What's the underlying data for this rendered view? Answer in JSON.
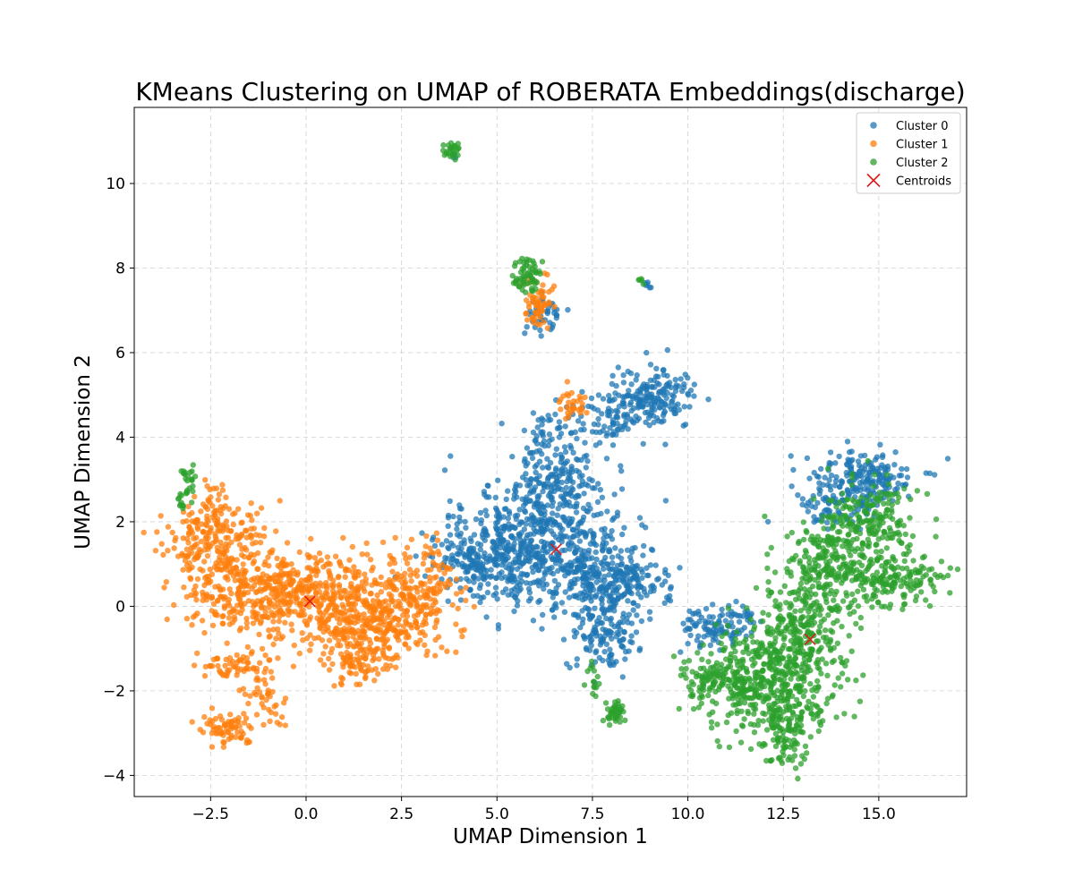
{
  "chart_data": {
    "type": "scatter",
    "title": "KMeans Clustering on UMAP of ROBERATA Embeddings(discharge)",
    "xlabel": "UMAP Dimension 1",
    "ylabel": "UMAP Dimension 2",
    "xlim": [
      -4.5,
      17.3
    ],
    "ylim": [
      -4.5,
      11.8
    ],
    "xticks": [
      -2.5,
      0.0,
      2.5,
      5.0,
      7.5,
      10.0,
      12.5,
      15.0
    ],
    "xtick_labels": [
      "−2.5",
      "0.0",
      "2.5",
      "5.0",
      "7.5",
      "10.0",
      "12.5",
      "15.0"
    ],
    "yticks": [
      -4,
      -2,
      0,
      2,
      4,
      6,
      8,
      10
    ],
    "ytick_labels": [
      "−4",
      "−2",
      "0",
      "2",
      "4",
      "6",
      "8",
      "10"
    ],
    "grid": true,
    "legend_position": "upper right",
    "series": [
      {
        "name": "Cluster 0",
        "color": "#1f77b4",
        "blobs": [
          {
            "cx": 6.2,
            "cy": 1.8,
            "sx": 1.0,
            "sy": 0.9,
            "n": 420
          },
          {
            "cx": 5.2,
            "cy": 1.2,
            "sx": 0.8,
            "sy": 0.5,
            "n": 200
          },
          {
            "cx": 6.6,
            "cy": 3.3,
            "sx": 0.45,
            "sy": 0.7,
            "n": 160
          },
          {
            "cx": 7.5,
            "cy": 0.6,
            "sx": 0.7,
            "sy": 0.7,
            "n": 220
          },
          {
            "cx": 8.5,
            "cy": 0.6,
            "sx": 0.5,
            "sy": 0.35,
            "n": 120
          },
          {
            "cx": 7.9,
            "cy": -0.6,
            "sx": 0.4,
            "sy": 0.5,
            "n": 110
          },
          {
            "cx": 9.1,
            "cy": 4.9,
            "sx": 0.55,
            "sy": 0.35,
            "n": 170
          },
          {
            "cx": 8.0,
            "cy": 4.5,
            "sx": 0.5,
            "sy": 0.3,
            "n": 70
          },
          {
            "cx": 4.2,
            "cy": 1.0,
            "sx": 0.45,
            "sy": 0.35,
            "n": 90
          },
          {
            "cx": 14.6,
            "cy": 3.0,
            "sx": 0.7,
            "sy": 0.35,
            "n": 200
          },
          {
            "cx": 13.7,
            "cy": 2.3,
            "sx": 0.5,
            "sy": 0.3,
            "n": 60
          },
          {
            "cx": 10.5,
            "cy": -0.6,
            "sx": 0.35,
            "sy": 0.3,
            "n": 60
          },
          {
            "cx": 11.2,
            "cy": -0.4,
            "sx": 0.4,
            "sy": 0.3,
            "n": 50
          },
          {
            "cx": 6.2,
            "cy": 6.9,
            "sx": 0.25,
            "sy": 0.25,
            "n": 40
          },
          {
            "cx": 8.9,
            "cy": 7.6,
            "sx": 0.05,
            "sy": 0.05,
            "n": 6
          },
          {
            "cx": 3.9,
            "cy": 10.6,
            "sx": 0.05,
            "sy": 0.05,
            "n": 3
          }
        ]
      },
      {
        "name": "Cluster 1",
        "color": "#ff7f0e",
        "blobs": [
          {
            "cx": 0.3,
            "cy": 0.2,
            "sx": 1.3,
            "sy": 0.5,
            "n": 420
          },
          {
            "cx": 1.8,
            "cy": -0.4,
            "sx": 0.9,
            "sy": 0.45,
            "n": 260
          },
          {
            "cx": 1.3,
            "cy": -1.3,
            "sx": 0.4,
            "sy": 0.3,
            "n": 80
          },
          {
            "cx": -2.3,
            "cy": 1.5,
            "sx": 0.7,
            "sy": 0.5,
            "n": 220
          },
          {
            "cx": -1.5,
            "cy": 0.3,
            "sx": 0.8,
            "sy": 0.4,
            "n": 180
          },
          {
            "cx": -2.6,
            "cy": 2.3,
            "sx": 0.25,
            "sy": 0.3,
            "n": 40
          },
          {
            "cx": 3.0,
            "cy": 0.5,
            "sx": 0.5,
            "sy": 0.5,
            "n": 140
          },
          {
            "cx": -1.8,
            "cy": -1.4,
            "sx": 0.6,
            "sy": 0.15,
            "n": 60
          },
          {
            "cx": -2.0,
            "cy": -2.9,
            "sx": 0.35,
            "sy": 0.2,
            "n": 70
          },
          {
            "cx": -1.0,
            "cy": -2.2,
            "sx": 0.35,
            "sy": 0.25,
            "n": 40
          },
          {
            "cx": 6.1,
            "cy": 7.2,
            "sx": 0.18,
            "sy": 0.3,
            "n": 60
          },
          {
            "cx": 6.9,
            "cy": 4.8,
            "sx": 0.2,
            "sy": 0.2,
            "n": 30
          }
        ]
      },
      {
        "name": "Cluster 2",
        "color": "#2ca02c",
        "blobs": [
          {
            "cx": 12.2,
            "cy": -1.7,
            "sx": 0.9,
            "sy": 0.6,
            "n": 420
          },
          {
            "cx": 13.0,
            "cy": -0.5,
            "sx": 0.6,
            "sy": 0.6,
            "n": 220
          },
          {
            "cx": 12.5,
            "cy": -3.0,
            "sx": 0.3,
            "sy": 0.45,
            "n": 110
          },
          {
            "cx": 10.7,
            "cy": -1.7,
            "sx": 0.45,
            "sy": 0.25,
            "n": 110
          },
          {
            "cx": 13.8,
            "cy": 0.9,
            "sx": 0.6,
            "sy": 0.5,
            "n": 220
          },
          {
            "cx": 14.8,
            "cy": 2.0,
            "sx": 0.6,
            "sy": 0.5,
            "n": 200
          },
          {
            "cx": 15.5,
            "cy": 0.6,
            "sx": 0.6,
            "sy": 0.3,
            "n": 150
          },
          {
            "cx": 8.1,
            "cy": -2.5,
            "sx": 0.12,
            "sy": 0.12,
            "n": 40
          },
          {
            "cx": 5.8,
            "cy": 7.8,
            "sx": 0.2,
            "sy": 0.25,
            "n": 60
          },
          {
            "cx": 3.8,
            "cy": 10.8,
            "sx": 0.12,
            "sy": 0.1,
            "n": 25
          },
          {
            "cx": -3.1,
            "cy": 2.9,
            "sx": 0.1,
            "sy": 0.25,
            "n": 25
          },
          {
            "cx": -3.3,
            "cy": 2.4,
            "sx": 0.05,
            "sy": 0.1,
            "n": 8
          },
          {
            "cx": 7.5,
            "cy": -1.8,
            "sx": 0.15,
            "sy": 0.25,
            "n": 15
          },
          {
            "cx": 8.8,
            "cy": 7.7,
            "sx": 0.05,
            "sy": 0.05,
            "n": 5
          }
        ]
      }
    ],
    "centroids": {
      "name": "Centroids",
      "color": "#e31a1c",
      "points": [
        [
          0.1,
          0.12
        ],
        [
          6.55,
          1.35
        ],
        [
          13.2,
          -0.78
        ]
      ]
    }
  }
}
